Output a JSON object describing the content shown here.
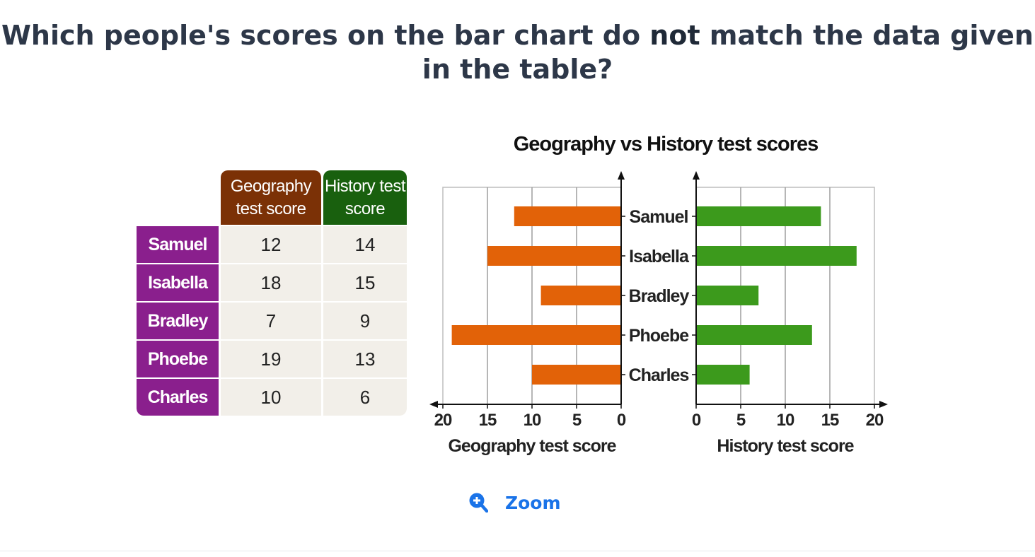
{
  "question": {
    "before": "Which people's scores on the bar chart do ",
    "emphasis": "not",
    "after": " match the data given in the table?"
  },
  "table": {
    "headers": {
      "geography": "Geography test score",
      "history": "History test score"
    },
    "rows": [
      {
        "name": "Samuel",
        "geography": "12",
        "history": "14"
      },
      {
        "name": "Isabella",
        "geography": "18",
        "history": "15"
      },
      {
        "name": "Bradley",
        "geography": "7",
        "history": "9"
      },
      {
        "name": "Phoebe",
        "geography": "19",
        "history": "13"
      },
      {
        "name": "Charles",
        "geography": "10",
        "history": "6"
      }
    ],
    "colors": {
      "name_bg": "#8a1f8d",
      "geography_header": "#7b3106",
      "history_header": "#19600e",
      "cell_bg": "#f2efe9"
    }
  },
  "chart_data": {
    "type": "bar",
    "title": "Geography vs History test scores",
    "categories": [
      "Samuel",
      "Isabella",
      "Bradley",
      "Phoebe",
      "Charles"
    ],
    "series": [
      {
        "name": "Geography test score",
        "values": [
          12,
          15,
          9,
          19,
          10
        ],
        "color": "#e26208"
      },
      {
        "name": "History test score",
        "values": [
          14,
          18,
          7,
          13,
          6
        ],
        "color": "#3c9a1c"
      }
    ],
    "left_xlabel": "Geography test score",
    "right_xlabel": "History test score",
    "xlim": [
      0,
      20
    ],
    "ticks": [
      0,
      5,
      10,
      15,
      20
    ],
    "grid": true
  },
  "zoom": {
    "label": "Zoom",
    "icon": "zoom-in-icon",
    "color": "#1a73e8"
  }
}
